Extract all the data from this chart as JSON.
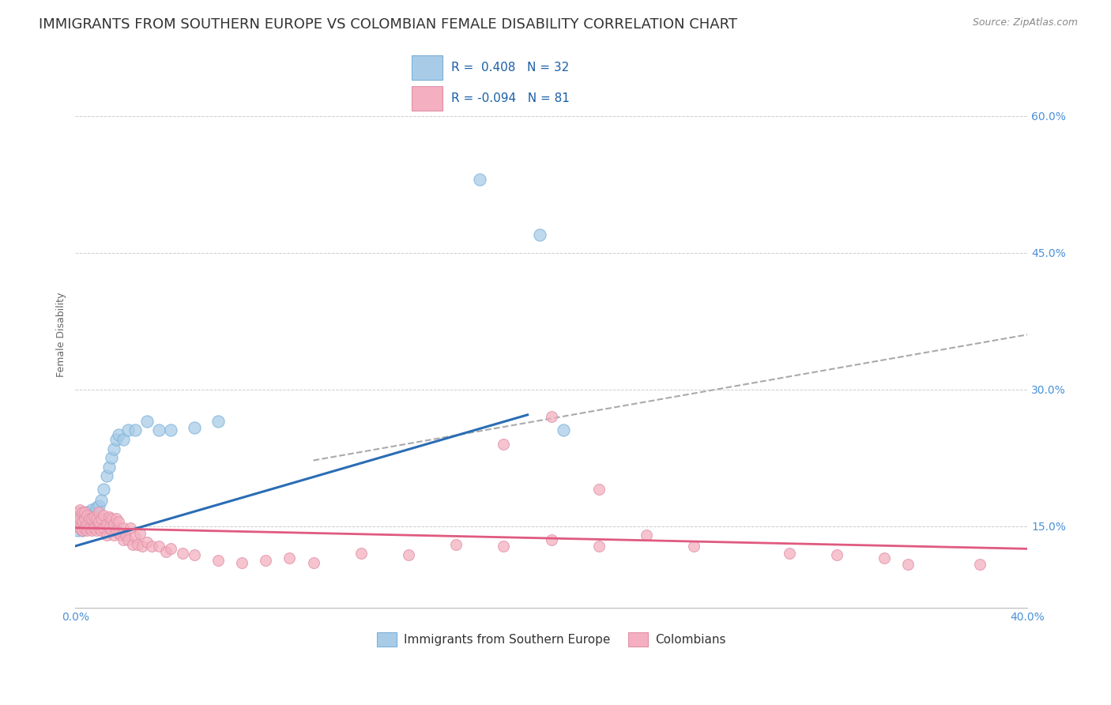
{
  "title": "IMMIGRANTS FROM SOUTHERN EUROPE VS COLOMBIAN FEMALE DISABILITY CORRELATION CHART",
  "source": "Source: ZipAtlas.com",
  "ylabel": "Female Disability",
  "r_blue": 0.408,
  "n_blue": 32,
  "r_pink": -0.094,
  "n_pink": 81,
  "xlim": [
    0.0,
    0.4
  ],
  "ylim": [
    0.06,
    0.66
  ],
  "ytick_positions": [
    0.15,
    0.3,
    0.45,
    0.6
  ],
  "ytick_labels": [
    "15.0%",
    "30.0%",
    "45.0%",
    "60.0%"
  ],
  "blue_color": "#a8cce8",
  "pink_color": "#f4b0c0",
  "blue_line_color": "#2a6db5",
  "pink_line_color": "#e05a80",
  "dashed_line_color": "#aaaaaa",
  "background_color": "#ffffff",
  "title_fontsize": 13,
  "axis_label_fontsize": 9,
  "tick_fontsize": 10,
  "blue_scatter_x": [
    0.001,
    0.002,
    0.002,
    0.003,
    0.003,
    0.004,
    0.005,
    0.005,
    0.006,
    0.007,
    0.008,
    0.009,
    0.01,
    0.011,
    0.012,
    0.013,
    0.014,
    0.015,
    0.016,
    0.017,
    0.018,
    0.02,
    0.022,
    0.025,
    0.03,
    0.035,
    0.04,
    0.05,
    0.06,
    0.17,
    0.195,
    0.205
  ],
  "blue_scatter_y": [
    0.145,
    0.15,
    0.16,
    0.145,
    0.158,
    0.155,
    0.155,
    0.165,
    0.162,
    0.168,
    0.158,
    0.17,
    0.172,
    0.178,
    0.19,
    0.205,
    0.215,
    0.225,
    0.235,
    0.245,
    0.25,
    0.245,
    0.255,
    0.255,
    0.265,
    0.255,
    0.255,
    0.258,
    0.265,
    0.53,
    0.47,
    0.255
  ],
  "pink_scatter_x": [
    0.001,
    0.001,
    0.001,
    0.002,
    0.002,
    0.002,
    0.003,
    0.003,
    0.003,
    0.004,
    0.004,
    0.004,
    0.005,
    0.005,
    0.005,
    0.006,
    0.006,
    0.007,
    0.007,
    0.008,
    0.008,
    0.009,
    0.009,
    0.01,
    0.01,
    0.01,
    0.011,
    0.011,
    0.012,
    0.012,
    0.013,
    0.013,
    0.014,
    0.014,
    0.015,
    0.015,
    0.016,
    0.016,
    0.017,
    0.017,
    0.018,
    0.018,
    0.019,
    0.02,
    0.02,
    0.021,
    0.022,
    0.023,
    0.024,
    0.025,
    0.026,
    0.027,
    0.028,
    0.03,
    0.032,
    0.035,
    0.038,
    0.04,
    0.045,
    0.05,
    0.06,
    0.07,
    0.08,
    0.09,
    0.1,
    0.12,
    0.14,
    0.16,
    0.18,
    0.2,
    0.22,
    0.24,
    0.26,
    0.3,
    0.32,
    0.34,
    0.18,
    0.2,
    0.22,
    0.35,
    0.38
  ],
  "pink_scatter_y": [
    0.15,
    0.155,
    0.165,
    0.148,
    0.158,
    0.168,
    0.145,
    0.155,
    0.165,
    0.148,
    0.158,
    0.165,
    0.145,
    0.152,
    0.162,
    0.148,
    0.158,
    0.145,
    0.158,
    0.148,
    0.16,
    0.145,
    0.158,
    0.148,
    0.155,
    0.165,
    0.145,
    0.158,
    0.148,
    0.162,
    0.14,
    0.152,
    0.148,
    0.16,
    0.145,
    0.158,
    0.14,
    0.152,
    0.145,
    0.158,
    0.142,
    0.155,
    0.14,
    0.135,
    0.148,
    0.14,
    0.135,
    0.148,
    0.13,
    0.138,
    0.13,
    0.142,
    0.128,
    0.132,
    0.128,
    0.128,
    0.122,
    0.125,
    0.12,
    0.118,
    0.112,
    0.11,
    0.112,
    0.115,
    0.11,
    0.12,
    0.118,
    0.13,
    0.128,
    0.135,
    0.128,
    0.14,
    0.128,
    0.12,
    0.118,
    0.115,
    0.24,
    0.27,
    0.19,
    0.108,
    0.108
  ],
  "blue_line_x": [
    0.0,
    0.19
  ],
  "blue_line_y": [
    0.128,
    0.272
  ],
  "dash_line_x": [
    0.1,
    0.4
  ],
  "dash_line_y": [
    0.222,
    0.36
  ],
  "pink_line_x": [
    0.0,
    0.4
  ],
  "pink_line_y": [
    0.148,
    0.125
  ]
}
